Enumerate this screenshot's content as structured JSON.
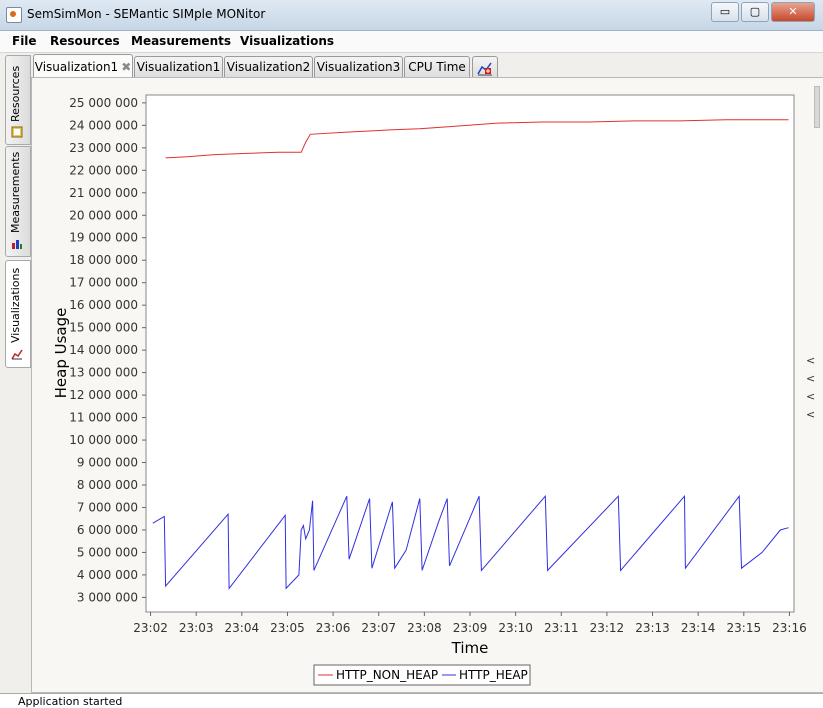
{
  "window": {
    "title": "SemSimMon - SEMantic SIMple MONitor",
    "min_label": "▭",
    "max_label": "▢",
    "close_label": "✕"
  },
  "menu": {
    "items": [
      "File",
      "Resources",
      "Measurements",
      "Visualizations"
    ]
  },
  "sidebar": {
    "tabs": [
      "Resources",
      "Measurements",
      "Visualizations"
    ]
  },
  "tabs": [
    {
      "label": "Visualization1",
      "closable": true,
      "active": true
    },
    {
      "label": "Visualization1",
      "closable": false,
      "active": false
    },
    {
      "label": "Visualization2",
      "closable": false,
      "active": false
    },
    {
      "label": "Visualization3",
      "closable": false,
      "active": false
    },
    {
      "label": "CPU Time",
      "closable": false,
      "active": false
    }
  ],
  "tab_close_glyph": "✖",
  "side_arrows": [
    "<",
    "<",
    "<",
    "<"
  ],
  "status": {
    "text": "Application started"
  },
  "chart_data": {
    "type": "line",
    "title": "",
    "xlabel": "Time",
    "ylabel": "Heap Usage",
    "x_ticks": [
      "23:02",
      "23:03",
      "23:04",
      "23:05",
      "23:06",
      "23:07",
      "23:08",
      "23:09",
      "23:10",
      "23:11",
      "23:12",
      "23:13",
      "23:14",
      "23:15",
      "23:16"
    ],
    "y_ticks": [
      3000000,
      4000000,
      5000000,
      6000000,
      7000000,
      8000000,
      9000000,
      10000000,
      11000000,
      12000000,
      13000000,
      14000000,
      15000000,
      16000000,
      17000000,
      18000000,
      19000000,
      20000000,
      21000000,
      22000000,
      23000000,
      24000000,
      25000000
    ],
    "y_tick_labels": [
      "3 000 000",
      "4 000 000",
      "5 000 000",
      "6 000 000",
      "7 000 000",
      "8 000 000",
      "9 000 000",
      "10 000 000",
      "11 000 000",
      "12 000 000",
      "13 000 000",
      "14 000 000",
      "15 000 000",
      "16 000 000",
      "17 000 000",
      "18 000 000",
      "19 000 000",
      "20 000 000",
      "21 000 000",
      "22 000 000",
      "23 000 000",
      "24 000 000",
      "25 000 000"
    ],
    "xlim_minutes": [
      -0.1,
      14.1
    ],
    "ylim": [
      2350000,
      25350000
    ],
    "grid": false,
    "legend_position": "bottom",
    "series": [
      {
        "name": "HTTP_NON_HEAP",
        "color": "#e03030",
        "points": [
          [
            0.33,
            22550000
          ],
          [
            0.8,
            22600000
          ],
          [
            1.4,
            22700000
          ],
          [
            2.1,
            22750000
          ],
          [
            2.8,
            22800000
          ],
          [
            3.3,
            22800000
          ],
          [
            3.4,
            23250000
          ],
          [
            3.5,
            23600000
          ],
          [
            4.3,
            23700000
          ],
          [
            4.8,
            23750000
          ],
          [
            5.3,
            23800000
          ],
          [
            5.9,
            23850000
          ],
          [
            6.6,
            23950000
          ],
          [
            7.6,
            24100000
          ],
          [
            8.6,
            24150000
          ],
          [
            9.6,
            24150000
          ],
          [
            10.6,
            24200000
          ],
          [
            11.6,
            24200000
          ],
          [
            12.6,
            24250000
          ],
          [
            13.6,
            24250000
          ],
          [
            13.98,
            24250000
          ]
        ]
      },
      {
        "name": "HTTP_HEAP",
        "color": "#3030e0",
        "points": [
          [
            0.05,
            6300000
          ],
          [
            0.3,
            6600000
          ],
          [
            0.33,
            3500000
          ],
          [
            1.7,
            6700000
          ],
          [
            1.72,
            3400000
          ],
          [
            2.95,
            6650000
          ],
          [
            2.97,
            3400000
          ],
          [
            3.25,
            4000000
          ],
          [
            3.3,
            6000000
          ],
          [
            3.35,
            6200000
          ],
          [
            3.4,
            5600000
          ],
          [
            3.48,
            6000000
          ],
          [
            3.55,
            7300000
          ],
          [
            3.58,
            4200000
          ],
          [
            4.3,
            7500000
          ],
          [
            4.35,
            4700000
          ],
          [
            4.8,
            7400000
          ],
          [
            4.85,
            4300000
          ],
          [
            5.3,
            7250000
          ],
          [
            5.35,
            4300000
          ],
          [
            5.6,
            5100000
          ],
          [
            5.9,
            7400000
          ],
          [
            5.95,
            4200000
          ],
          [
            6.3,
            6300000
          ],
          [
            6.5,
            7400000
          ],
          [
            6.55,
            4400000
          ],
          [
            6.95,
            6300000
          ],
          [
            7.2,
            7500000
          ],
          [
            7.25,
            4200000
          ],
          [
            8.65,
            7500000
          ],
          [
            8.7,
            4200000
          ],
          [
            10.25,
            7500000
          ],
          [
            10.3,
            4200000
          ],
          [
            11.7,
            7500000
          ],
          [
            11.72,
            4300000
          ],
          [
            12.9,
            7500000
          ],
          [
            12.95,
            4300000
          ],
          [
            13.4,
            5000000
          ],
          [
            13.8,
            6000000
          ],
          [
            13.98,
            6100000
          ]
        ]
      }
    ]
  }
}
